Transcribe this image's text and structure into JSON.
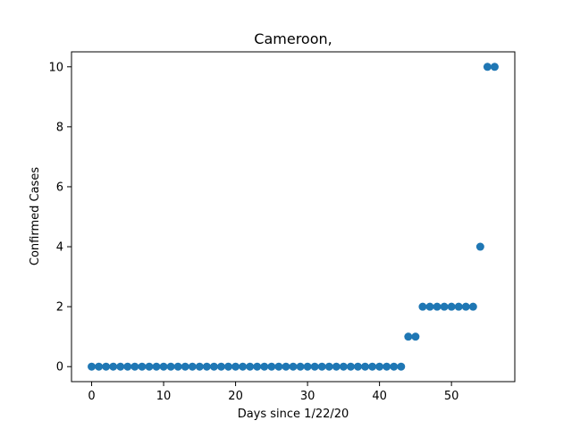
{
  "chart_data": {
    "type": "scatter",
    "title": "Cameroon,",
    "xlabel": "Days since 1/22/20",
    "ylabel": "Confirmed Cases",
    "xlim": [
      -2.8,
      58.8
    ],
    "ylim": [
      -0.5,
      10.5
    ],
    "xticks": [
      0,
      10,
      20,
      30,
      40,
      50
    ],
    "yticks": [
      0,
      2,
      4,
      6,
      8,
      10
    ],
    "grid": false,
    "marker_color": "#1f77b4",
    "series": [
      {
        "x": [
          0,
          1,
          2,
          3,
          4,
          5,
          6,
          7,
          8,
          9,
          10,
          11,
          12,
          13,
          14,
          15,
          16,
          17,
          18,
          19,
          20,
          21,
          22,
          23,
          24,
          25,
          26,
          27,
          28,
          29,
          30,
          31,
          32,
          33,
          34,
          35,
          36,
          37,
          38,
          39,
          40,
          41,
          42,
          43,
          44,
          45,
          46,
          47,
          48,
          49,
          50,
          51,
          52,
          53,
          54,
          55,
          56
        ],
        "y": [
          0,
          0,
          0,
          0,
          0,
          0,
          0,
          0,
          0,
          0,
          0,
          0,
          0,
          0,
          0,
          0,
          0,
          0,
          0,
          0,
          0,
          0,
          0,
          0,
          0,
          0,
          0,
          0,
          0,
          0,
          0,
          0,
          0,
          0,
          0,
          0,
          0,
          0,
          0,
          0,
          0,
          0,
          0,
          0,
          1,
          1,
          2,
          2,
          2,
          2,
          2,
          2,
          2,
          2,
          4,
          10,
          10
        ]
      }
    ]
  }
}
